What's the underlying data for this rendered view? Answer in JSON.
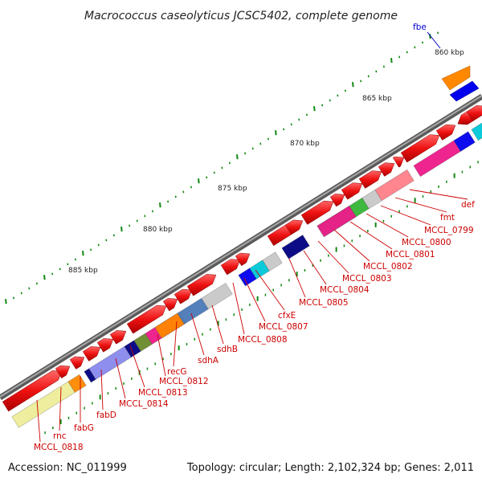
{
  "title": "Macrococcus caseolyticus JCSC5402, complete genome",
  "footer": {
    "accession": "Accession: NC_011999",
    "topology": "Topology: circular; Length: 2,102,324 bp; Genes: 2,011"
  },
  "ruler": {
    "tick_labels": [
      "860 kbp",
      "865 kbp",
      "870 kbp",
      "875 kbp",
      "880 kbp",
      "885 kbp"
    ]
  },
  "gene_labels": [
    {
      "text": "fbe",
      "color": "#0000cc"
    },
    {
      "text": "def",
      "color": "#cc0000"
    },
    {
      "text": "fmt",
      "color": "#cc0000"
    },
    {
      "text": "MCCL_0799",
      "color": "#cc0000"
    },
    {
      "text": "MCCL_0800",
      "color": "#cc0000"
    },
    {
      "text": "MCCL_0801",
      "color": "#cc0000"
    },
    {
      "text": "MCCL_0802",
      "color": "#cc0000"
    },
    {
      "text": "MCCL_0803",
      "color": "#cc0000"
    },
    {
      "text": "MCCL_0804",
      "color": "#cc0000"
    },
    {
      "text": "MCCL_0805",
      "color": "#cc0000"
    },
    {
      "text": "cfxE",
      "color": "#cc0000"
    },
    {
      "text": "MCCL_0807",
      "color": "#cc0000"
    },
    {
      "text": "MCCL_0808",
      "color": "#cc0000"
    },
    {
      "text": "sdhB",
      "color": "#cc0000"
    },
    {
      "text": "sdhA",
      "color": "#cc0000"
    },
    {
      "text": "recG",
      "color": "#cc0000"
    },
    {
      "text": "MCCL_0812",
      "color": "#cc0000"
    },
    {
      "text": "MCCL_0813",
      "color": "#cc0000"
    },
    {
      "text": "MCCL_0814",
      "color": "#cc0000"
    },
    {
      "text": "fabD",
      "color": "#cc0000"
    },
    {
      "text": "fabG",
      "color": "#cc0000"
    },
    {
      "text": "rnc",
      "color": "#cc0000"
    },
    {
      "text": "MCCL_0818",
      "color": "#cc0000"
    }
  ],
  "colors": {
    "backbone": "#888888",
    "gene": "#ee1111",
    "cog_palette": [
      "#ff8800",
      "#0000ee",
      "#ee1a8a",
      "#ff7f8a",
      "#c8c8c8",
      "#35b535",
      "#000080",
      "#00c8d8",
      "#8888ee",
      "#6a8a2a",
      "#4a7ab8",
      "#eeee99"
    ]
  }
}
